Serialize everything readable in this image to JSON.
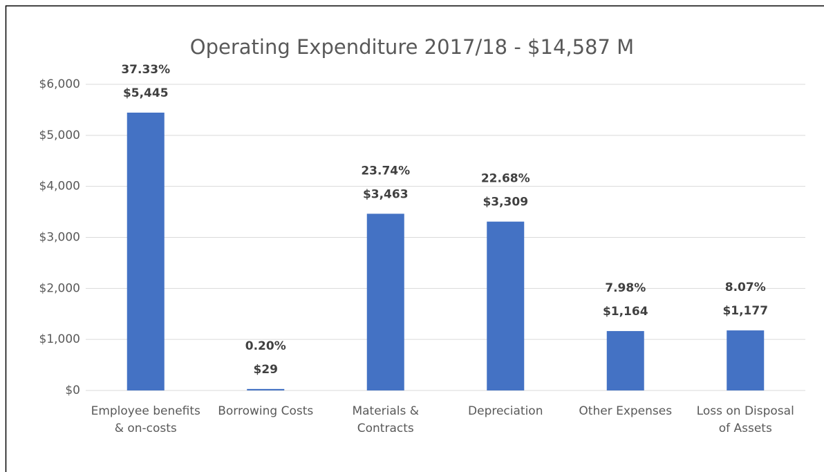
{
  "chart_data": {
    "type": "bar",
    "title": "Operating Expenditure 2017/18 - $14,587 M",
    "categories": [
      "Employee benefits & on-costs",
      "Borrowing Costs",
      "Materials & Contracts",
      "Depreciation",
      "Other Expenses",
      "Loss on Disposal of Assets"
    ],
    "values": [
      5445,
      29,
      3463,
      3309,
      1164,
      1177
    ],
    "value_labels": [
      "$5,445",
      "$29",
      "$3,463",
      "$3,309",
      "$1,164",
      "$1,177"
    ],
    "share_labels": [
      "37.33%",
      "0.20%",
      "23.74%",
      "22.68%",
      "7.98%",
      "8.07%"
    ],
    "color": "#4472c4",
    "ylim": [
      0,
      6000
    ],
    "yticks": [
      {
        "value": 0,
        "label": "$0"
      },
      {
        "value": 1000,
        "label": "$1,000"
      },
      {
        "value": 2000,
        "label": "$2,000"
      },
      {
        "value": 3000,
        "label": "$3,000"
      },
      {
        "value": 4000,
        "label": "$4,000"
      },
      {
        "value": 5000,
        "label": "$5,000"
      },
      {
        "value": 6000,
        "label": "$6,000"
      }
    ],
    "grid": true
  }
}
